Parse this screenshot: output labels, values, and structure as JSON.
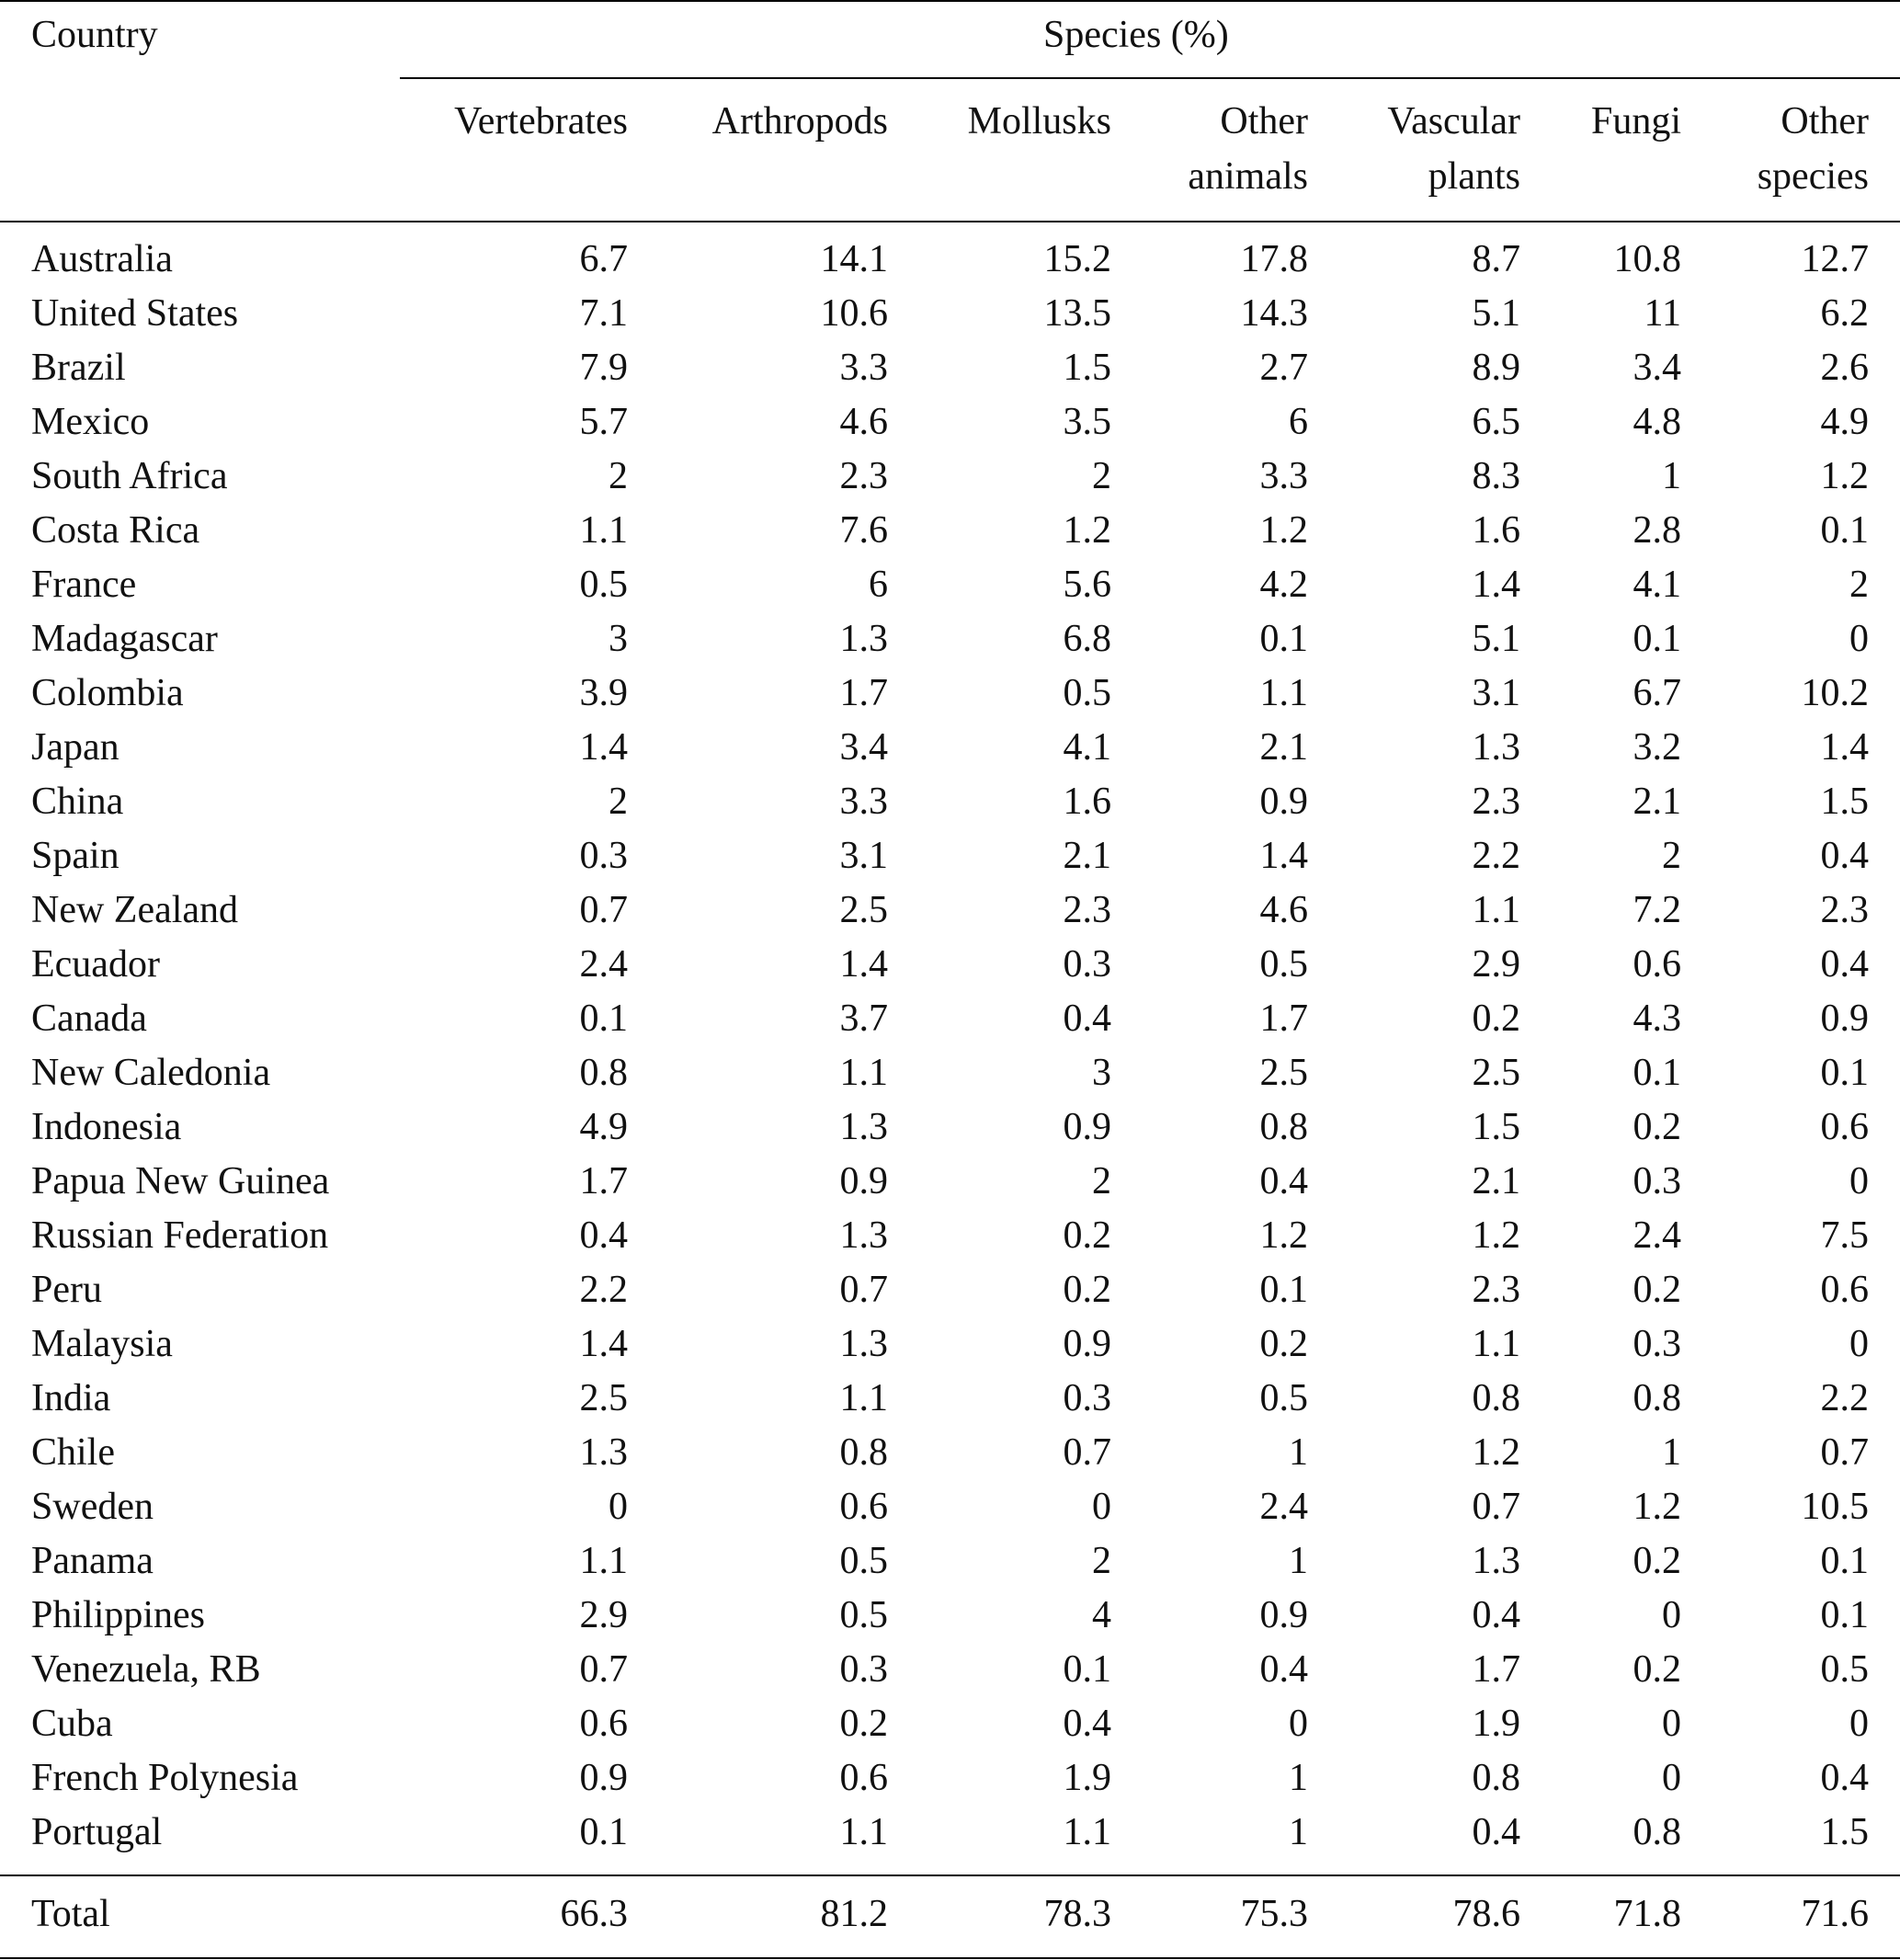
{
  "header": {
    "country_label": "Country",
    "group_label": "Species (%)",
    "columns": [
      [
        "Vertebrates",
        ""
      ],
      [
        "Arthropods",
        ""
      ],
      [
        "Mollusks",
        ""
      ],
      [
        "Other",
        "animals"
      ],
      [
        "Vascular",
        "plants"
      ],
      [
        "Fungi",
        ""
      ],
      [
        "Other",
        "species"
      ]
    ]
  },
  "rows": [
    [
      "Australia",
      "6.7",
      "14.1",
      "15.2",
      "17.8",
      "8.7",
      "10.8",
      "12.7"
    ],
    [
      "United States",
      "7.1",
      "10.6",
      "13.5",
      "14.3",
      "5.1",
      "11",
      "6.2"
    ],
    [
      "Brazil",
      "7.9",
      "3.3",
      "1.5",
      "2.7",
      "8.9",
      "3.4",
      "2.6"
    ],
    [
      "Mexico",
      "5.7",
      "4.6",
      "3.5",
      "6",
      "6.5",
      "4.8",
      "4.9"
    ],
    [
      "South Africa",
      "2",
      "2.3",
      "2",
      "3.3",
      "8.3",
      "1",
      "1.2"
    ],
    [
      "Costa Rica",
      "1.1",
      "7.6",
      "1.2",
      "1.2",
      "1.6",
      "2.8",
      "0.1"
    ],
    [
      "France",
      "0.5",
      "6",
      "5.6",
      "4.2",
      "1.4",
      "4.1",
      "2"
    ],
    [
      "Madagascar",
      "3",
      "1.3",
      "6.8",
      "0.1",
      "5.1",
      "0.1",
      "0"
    ],
    [
      "Colombia",
      "3.9",
      "1.7",
      "0.5",
      "1.1",
      "3.1",
      "6.7",
      "10.2"
    ],
    [
      "Japan",
      "1.4",
      "3.4",
      "4.1",
      "2.1",
      "1.3",
      "3.2",
      "1.4"
    ],
    [
      "China",
      "2",
      "3.3",
      "1.6",
      "0.9",
      "2.3",
      "2.1",
      "1.5"
    ],
    [
      "Spain",
      "0.3",
      "3.1",
      "2.1",
      "1.4",
      "2.2",
      "2",
      "0.4"
    ],
    [
      "New Zealand",
      "0.7",
      "2.5",
      "2.3",
      "4.6",
      "1.1",
      "7.2",
      "2.3"
    ],
    [
      "Ecuador",
      "2.4",
      "1.4",
      "0.3",
      "0.5",
      "2.9",
      "0.6",
      "0.4"
    ],
    [
      "Canada",
      "0.1",
      "3.7",
      "0.4",
      "1.7",
      "0.2",
      "4.3",
      "0.9"
    ],
    [
      "New Caledonia",
      "0.8",
      "1.1",
      "3",
      "2.5",
      "2.5",
      "0.1",
      "0.1"
    ],
    [
      "Indonesia",
      "4.9",
      "1.3",
      "0.9",
      "0.8",
      "1.5",
      "0.2",
      "0.6"
    ],
    [
      "Papua New Guinea",
      "1.7",
      "0.9",
      "2",
      "0.4",
      "2.1",
      "0.3",
      "0"
    ],
    [
      "Russian Federation",
      "0.4",
      "1.3",
      "0.2",
      "1.2",
      "1.2",
      "2.4",
      "7.5"
    ],
    [
      "Peru",
      "2.2",
      "0.7",
      "0.2",
      "0.1",
      "2.3",
      "0.2",
      "0.6"
    ],
    [
      "Malaysia",
      "1.4",
      "1.3",
      "0.9",
      "0.2",
      "1.1",
      "0.3",
      "0"
    ],
    [
      "India",
      "2.5",
      "1.1",
      "0.3",
      "0.5",
      "0.8",
      "0.8",
      "2.2"
    ],
    [
      "Chile",
      "1.3",
      "0.8",
      "0.7",
      "1",
      "1.2",
      "1",
      "0.7"
    ],
    [
      "Sweden",
      "0",
      "0.6",
      "0",
      "2.4",
      "0.7",
      "1.2",
      "10.5"
    ],
    [
      "Panama",
      "1.1",
      "0.5",
      "2",
      "1",
      "1.3",
      "0.2",
      "0.1"
    ],
    [
      "Philippines",
      "2.9",
      "0.5",
      "4",
      "0.9",
      "0.4",
      "0",
      "0.1"
    ],
    [
      "Venezuela, RB",
      "0.7",
      "0.3",
      "0.1",
      "0.4",
      "1.7",
      "0.2",
      "0.5"
    ],
    [
      "Cuba",
      "0.6",
      "0.2",
      "0.4",
      "0",
      "1.9",
      "0",
      "0"
    ],
    [
      "French Polynesia",
      "0.9",
      "0.6",
      "1.9",
      "1",
      "0.8",
      "0",
      "0.4"
    ],
    [
      "Portugal",
      "0.1",
      "1.1",
      "1.1",
      "1",
      "0.4",
      "0.8",
      "1.5"
    ]
  ],
  "total": [
    "Total",
    "66.3",
    "81.2",
    "78.3",
    "75.3",
    "78.6",
    "71.8",
    "71.6"
  ]
}
